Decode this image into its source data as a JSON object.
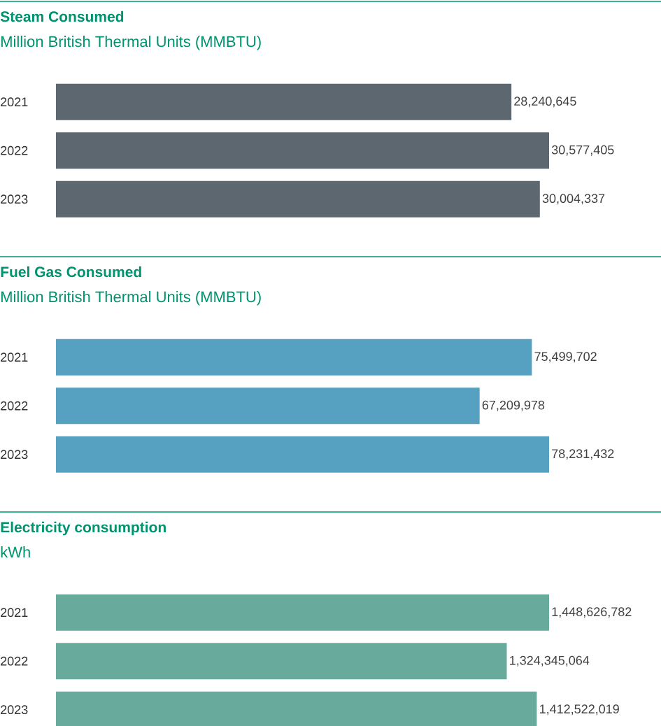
{
  "chart_data": [
    {
      "type": "bar",
      "orientation": "horizontal",
      "title": "Steam Consumed",
      "subtitle": "Million British Thermal Units (MMBTU)",
      "categories": [
        "2021",
        "2022",
        "2023"
      ],
      "values": [
        28240645,
        30577405,
        30004337
      ],
      "value_labels": [
        "28,240,645",
        "30,577,405",
        "30,004,337"
      ],
      "color": "#5d6770"
    },
    {
      "type": "bar",
      "orientation": "horizontal",
      "title": "Fuel Gas Consumed",
      "subtitle": "Million British Thermal Units (MMBTU)",
      "categories": [
        "2021",
        "2022",
        "2023"
      ],
      "values": [
        75499702,
        67209978,
        78231432
      ],
      "value_labels": [
        "75,499,702",
        "67,209,978",
        "78,231,432"
      ],
      "color": "#56a0c2"
    },
    {
      "type": "bar",
      "orientation": "horizontal",
      "title": "Electricity consumption",
      "subtitle": "kWh",
      "categories": [
        "2021",
        "2022",
        "2023"
      ],
      "values": [
        1448626782,
        1324345064,
        1412522019
      ],
      "value_labels": [
        "1,448,626,782",
        "1,324,345,064",
        "1,412,522,019"
      ],
      "color": "#68ab9d"
    }
  ]
}
